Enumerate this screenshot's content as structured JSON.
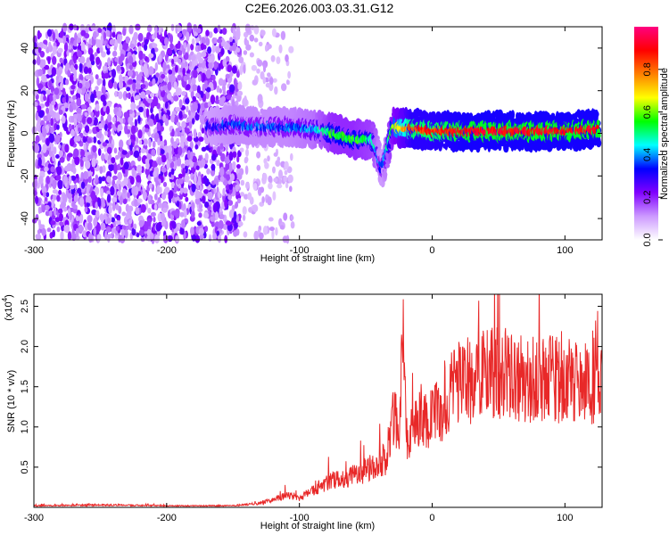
{
  "title": "C2E6.2026.003.03.31.G12",
  "chart_data": [
    {
      "type": "heatmap",
      "xlabel": "Height of straight line (km)",
      "ylabel": "Frequency (Hz)",
      "xlim": [
        -300,
        128
      ],
      "ylim": [
        -50,
        50
      ],
      "xticks": [
        -300,
        -200,
        -100,
        0,
        100
      ],
      "yticks": [
        -40,
        -20,
        0,
        20,
        40
      ],
      "colorbar": {
        "label": "Normalized spectral amplitude",
        "range": [
          0.0,
          1.0
        ],
        "ticks": [
          "0.0",
          "0.2",
          "0.4",
          "0.6",
          "0.8"
        ],
        "colors": [
          "#ffffff",
          "#cc99ff",
          "#8000ff",
          "#0000ff",
          "#00ffff",
          "#00ff00",
          "#ffff00",
          "#ff8000",
          "#ff0000",
          "#ff0080"
        ]
      },
      "description_points": {
        "noise_region_x": [
          -300,
          -145
        ],
        "signal_track": [
          {
            "x": -170,
            "freq": 3,
            "amp": 0.3
          },
          {
            "x": -150,
            "freq": 4,
            "amp": 0.35
          },
          {
            "x": -130,
            "freq": 3,
            "amp": 0.35
          },
          {
            "x": -110,
            "freq": 3,
            "amp": 0.35
          },
          {
            "x": -90,
            "freq": 2,
            "amp": 0.4
          },
          {
            "x": -75,
            "freq": 0,
            "amp": 0.55
          },
          {
            "x": -60,
            "freq": -3,
            "amp": 0.55
          },
          {
            "x": -45,
            "freq": -3,
            "amp": 0.5
          },
          {
            "x": -38,
            "freq": -17,
            "amp": 0.3
          },
          {
            "x": -30,
            "freq": 3,
            "amp": 0.6
          },
          {
            "x": -15,
            "freq": 2,
            "amp": 0.85
          },
          {
            "x": 0,
            "freq": 1,
            "amp": 0.85
          },
          {
            "x": 25,
            "freq": 1,
            "amp": 0.9
          },
          {
            "x": 50,
            "freq": 1,
            "amp": 0.9
          },
          {
            "x": 75,
            "freq": 1,
            "amp": 0.9
          },
          {
            "x": 100,
            "freq": 1,
            "amp": 0.9
          },
          {
            "x": 125,
            "freq": 2,
            "amp": 0.9
          }
        ]
      }
    },
    {
      "type": "line",
      "xlabel": "Height of straight line (km)",
      "ylabel": "SNR (10 * v/v)",
      "yscale_note": "(x10",
      "yscale_exp": "4",
      "xlim": [
        -300,
        128
      ],
      "ylim": [
        0,
        2.65
      ],
      "xticks": [
        -300,
        -200,
        -100,
        0,
        100
      ],
      "yticks": [
        "0.5",
        "1.0",
        "1.5",
        "2.0",
        "2.5"
      ],
      "yticks_values": [
        0.5,
        1.0,
        1.5,
        2.0,
        2.5
      ],
      "series_color": "#e82828",
      "x": [
        -300,
        -250,
        -200,
        -150,
        -130,
        -110,
        -100,
        -80,
        -60,
        -45,
        -35,
        -28,
        -25,
        -22,
        -20,
        -18,
        -15,
        -10,
        0,
        10,
        20,
        30,
        40,
        60,
        80,
        100,
        110,
        120,
        125,
        128
      ],
      "y": [
        0.02,
        0.03,
        0.02,
        0.02,
        0.05,
        0.15,
        0.12,
        0.3,
        0.4,
        0.5,
        0.6,
        1.2,
        0.8,
        2.1,
        1.3,
        0.7,
        1.0,
        1.15,
        1.1,
        1.3,
        1.6,
        1.55,
        1.7,
        1.65,
        1.6,
        1.6,
        1.5,
        1.55,
        1.35,
        1.5
      ]
    }
  ]
}
